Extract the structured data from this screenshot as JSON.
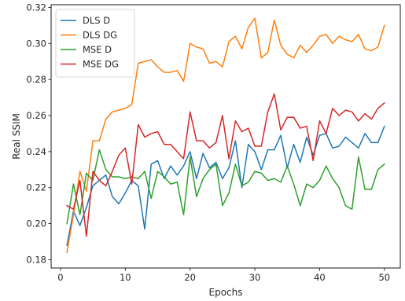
{
  "chart_data": {
    "type": "line",
    "title": "",
    "xlabel": "Epochs",
    "ylabel": "Real SSIM",
    "xlim": [
      -1.45,
      52.45
    ],
    "ylim": [
      0.1754,
      0.3215
    ],
    "xticks": [
      0,
      10,
      20,
      30,
      40,
      50
    ],
    "yticks": [
      0.18,
      0.2,
      0.22,
      0.24,
      0.26,
      0.28,
      0.3,
      0.32
    ],
    "grid": false,
    "legend_position": "top-left",
    "x": [
      1,
      2,
      3,
      4,
      5,
      6,
      7,
      8,
      9,
      10,
      11,
      12,
      13,
      14,
      15,
      16,
      17,
      18,
      19,
      20,
      21,
      22,
      23,
      24,
      25,
      26,
      27,
      28,
      29,
      30,
      31,
      32,
      33,
      34,
      35,
      36,
      37,
      38,
      39,
      40,
      41,
      42,
      43,
      44,
      45,
      46,
      47,
      48,
      49,
      50
    ],
    "series": [
      {
        "name": "DLS D",
        "color": "#1f77b4",
        "values": [
          0.188,
          0.207,
          0.199,
          0.209,
          0.221,
          0.224,
          0.227,
          0.215,
          0.211,
          0.217,
          0.224,
          0.221,
          0.197,
          0.233,
          0.235,
          0.225,
          0.232,
          0.227,
          0.232,
          0.24,
          0.225,
          0.239,
          0.231,
          0.234,
          0.225,
          0.231,
          0.246,
          0.22,
          0.244,
          0.24,
          0.23,
          0.241,
          0.241,
          0.249,
          0.231,
          0.244,
          0.234,
          0.248,
          0.238,
          0.249,
          0.25,
          0.242,
          0.243,
          0.248,
          0.245,
          0.242,
          0.25,
          0.245,
          0.245,
          0.254
        ]
      },
      {
        "name": "DLS DG",
        "color": "#ff7f0e",
        "values": [
          0.184,
          0.205,
          0.229,
          0.218,
          0.246,
          0.246,
          0.258,
          0.262,
          0.263,
          0.264,
          0.266,
          0.289,
          0.29,
          0.291,
          0.287,
          0.284,
          0.284,
          0.285,
          0.279,
          0.3,
          0.298,
          0.297,
          0.289,
          0.29,
          0.287,
          0.301,
          0.304,
          0.297,
          0.309,
          0.314,
          0.292,
          0.295,
          0.313,
          0.299,
          0.294,
          0.292,
          0.299,
          0.295,
          0.299,
          0.304,
          0.305,
          0.3,
          0.304,
          0.302,
          0.301,
          0.305,
          0.297,
          0.296,
          0.298,
          0.31
        ]
      },
      {
        "name": "MSE D",
        "color": "#2ca02c",
        "values": [
          0.2,
          0.222,
          0.205,
          0.228,
          0.224,
          0.241,
          0.23,
          0.226,
          0.226,
          0.225,
          0.226,
          0.225,
          0.229,
          0.214,
          0.229,
          0.226,
          0.222,
          0.223,
          0.205,
          0.237,
          0.215,
          0.225,
          0.23,
          0.233,
          0.21,
          0.217,
          0.233,
          0.221,
          0.223,
          0.229,
          0.228,
          0.224,
          0.225,
          0.223,
          0.232,
          0.222,
          0.21,
          0.222,
          0.22,
          0.224,
          0.232,
          0.225,
          0.22,
          0.21,
          0.208,
          0.237,
          0.219,
          0.219,
          0.23,
          0.233
        ]
      },
      {
        "name": "MSE DG",
        "color": "#d62728",
        "values": [
          0.21,
          0.208,
          0.224,
          0.193,
          0.229,
          0.224,
          0.221,
          0.229,
          0.238,
          0.242,
          0.222,
          0.255,
          0.248,
          0.25,
          0.251,
          0.244,
          0.244,
          0.24,
          0.236,
          0.262,
          0.246,
          0.246,
          0.242,
          0.245,
          0.26,
          0.236,
          0.257,
          0.251,
          0.253,
          0.243,
          0.243,
          0.262,
          0.272,
          0.252,
          0.259,
          0.259,
          0.253,
          0.254,
          0.235,
          0.257,
          0.25,
          0.264,
          0.26,
          0.263,
          0.262,
          0.257,
          0.261,
          0.258,
          0.264,
          0.267
        ]
      }
    ]
  }
}
